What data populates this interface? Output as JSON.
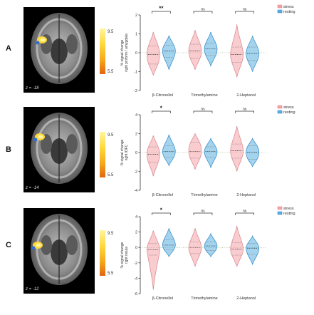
{
  "colorbar": {
    "max_label": "9.5",
    "min_label": "5.5"
  },
  "colors": {
    "stress": "#f4a3a8",
    "resting": "#5aaee0",
    "stress_edge": "#d9828a",
    "resting_edge": "#2f88c7"
  },
  "legend": {
    "stress": "stress",
    "resting": "resting"
  },
  "panels": [
    {
      "letter": "A",
      "slice_label": "z = -18",
      "ylabel_1": "% signal change",
      "ylabel_2": "right piriform / amygdala",
      "chart_data": {
        "type": "violin",
        "categories": [
          "β-Citronellol",
          "Trimethylamine",
          "2-Heptanol"
        ],
        "yticks": [
          "2",
          "1",
          "0",
          "-1",
          "-2"
        ],
        "ylim": [
          -2,
          2
        ],
        "significance": [
          "**",
          "ns",
          "ns"
        ],
        "series": [
          {
            "name": "stress",
            "median": [
              -0.1,
              0.1,
              -0.1
            ],
            "q1": [
              -0.6,
              -0.3,
              -0.5
            ],
            "q3": [
              0.35,
              0.45,
              0.3
            ],
            "min": [
              -1.2,
              -0.9,
              -1.3
            ],
            "max": [
              1.1,
              1.2,
              1.5
            ]
          },
          {
            "name": "resting",
            "median": [
              0.1,
              0.2,
              -0.05
            ],
            "q1": [
              -0.25,
              -0.15,
              -0.4
            ],
            "q3": [
              0.4,
              0.5,
              0.3
            ],
            "min": [
              -0.9,
              -0.7,
              -1.0
            ],
            "max": [
              0.9,
              1.1,
              0.9
            ]
          }
        ]
      }
    },
    {
      "letter": "B",
      "slice_label": "z = -14",
      "ylabel_1": "% signal change",
      "ylabel_2": "right lOFC",
      "chart_data": {
        "type": "violin",
        "categories": [
          "β-Citronellol",
          "Trimethylamine",
          "2-Heptanol"
        ],
        "yticks": [
          "4",
          "2",
          "0",
          "-2",
          "-4"
        ],
        "ylim": [
          -4,
          4
        ],
        "significance": [
          "*",
          "ns",
          "ns"
        ],
        "series": [
          {
            "name": "stress",
            "median": [
              -0.2,
              0.1,
              0.2
            ],
            "q1": [
              -1.0,
              -0.6,
              -0.6
            ],
            "q3": [
              0.6,
              1.1,
              0.9
            ],
            "min": [
              -2.5,
              -1.8,
              -2.0
            ],
            "max": [
              1.8,
              2.0,
              2.8
            ]
          },
          {
            "name": "resting",
            "median": [
              0.1,
              0.1,
              0.0
            ],
            "q1": [
              -0.5,
              -0.5,
              -0.7
            ],
            "q3": [
              0.7,
              0.6,
              0.7
            ],
            "min": [
              -1.4,
              -1.6,
              -1.5
            ],
            "max": [
              1.9,
              1.5,
              1.5
            ]
          }
        ]
      }
    },
    {
      "letter": "C",
      "slice_label": "z = -12",
      "ylabel_1": "% signal change",
      "ylabel_2": "right insula",
      "chart_data": {
        "type": "violin",
        "categories": [
          "β-Citronellol",
          "Trimethylamine",
          "2-Heptanol"
        ],
        "yticks": [
          "4",
          "2",
          "0",
          "-2",
          "-4",
          "-6"
        ],
        "ylim": [
          -6,
          4
        ],
        "significance": [
          "*",
          "ns",
          "ns"
        ],
        "series": [
          {
            "name": "stress",
            "median": [
              -0.3,
              0.0,
              -0.2
            ],
            "q1": [
              -1.0,
              -0.8,
              -1.0
            ],
            "q3": [
              0.5,
              0.7,
              0.6
            ],
            "min": [
              -5.5,
              -2.5,
              -2.5
            ],
            "max": [
              2.2,
              2.5,
              2.8
            ]
          },
          {
            "name": "resting",
            "median": [
              0.3,
              0.2,
              -0.1
            ],
            "q1": [
              -0.3,
              -0.4,
              -0.9
            ],
            "q3": [
              1.0,
              0.7,
              0.5
            ],
            "min": [
              -1.2,
              -1.2,
              -2.2
            ],
            "max": [
              2.5,
              1.8,
              1.5
            ]
          }
        ]
      }
    }
  ]
}
